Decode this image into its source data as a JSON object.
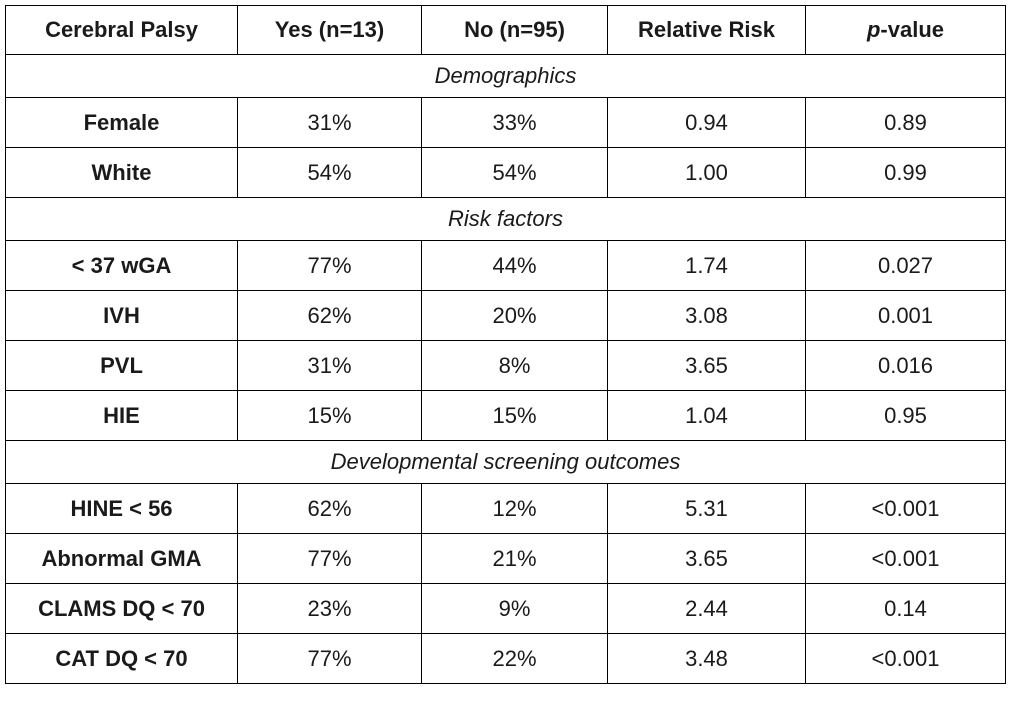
{
  "table": {
    "headers": {
      "col1": "Cerebral Palsy",
      "col2": "Yes (n=13)",
      "col3": "No (n=95)",
      "col4": "Relative Risk",
      "col5_italic": "p",
      "col5_rest": "-value"
    },
    "sections": [
      {
        "title": "Demographics",
        "rows": [
          {
            "label": "Female",
            "yes": "31%",
            "no": "33%",
            "rr": "0.94",
            "p": "0.89"
          },
          {
            "label": "White",
            "yes": "54%",
            "no": "54%",
            "rr": "1.00",
            "p": "0.99"
          }
        ]
      },
      {
        "title": "Risk factors",
        "rows": [
          {
            "label": "< 37 wGA",
            "yes": "77%",
            "no": "44%",
            "rr": "1.74",
            "p": "0.027"
          },
          {
            "label": "IVH",
            "yes": "62%",
            "no": "20%",
            "rr": "3.08",
            "p": "0.001"
          },
          {
            "label": "PVL",
            "yes": "31%",
            "no": "8%",
            "rr": "3.65",
            "p": "0.016"
          },
          {
            "label": "HIE",
            "yes": "15%",
            "no": "15%",
            "rr": "1.04",
            "p": "0.95"
          }
        ]
      },
      {
        "title": "Developmental screening outcomes",
        "rows": [
          {
            "label": "HINE < 56",
            "yes": "62%",
            "no": "12%",
            "rr": "5.31",
            "p": "<0.001"
          },
          {
            "label": "Abnormal GMA",
            "yes": "77%",
            "no": "21%",
            "rr": "3.65",
            "p": "<0.001"
          },
          {
            "label": "CLAMS DQ < 70",
            "yes": "23%",
            "no": "9%",
            "rr": "2.44",
            "p": "0.14"
          },
          {
            "label": "CAT DQ < 70",
            "yes": "77%",
            "no": "22%",
            "rr": "3.48",
            "p": "<0.001"
          }
        ]
      }
    ]
  }
}
